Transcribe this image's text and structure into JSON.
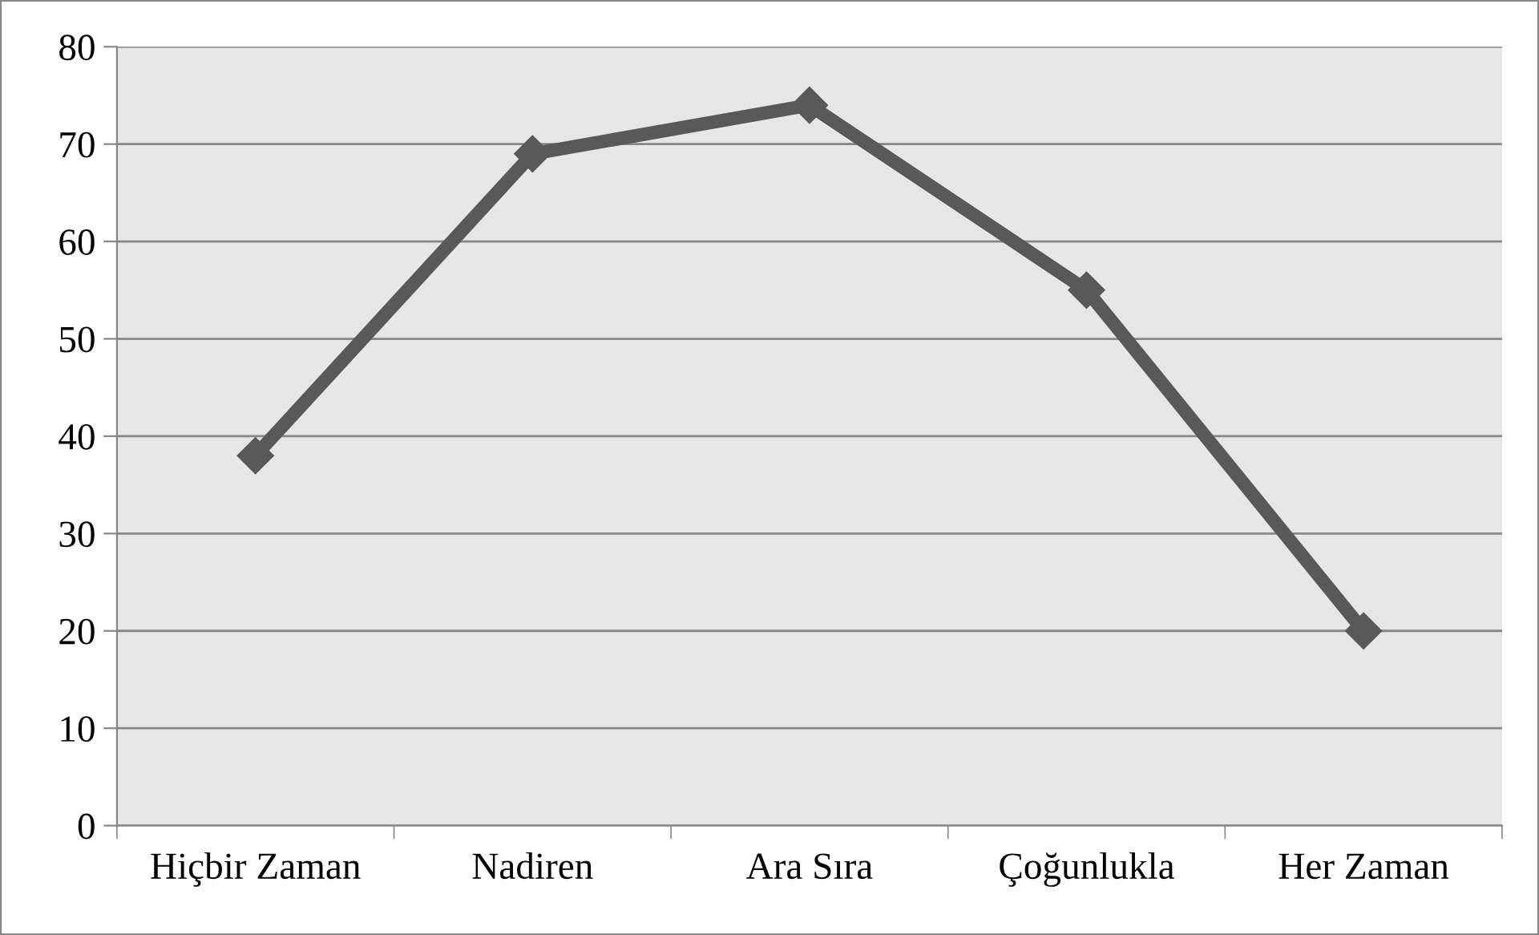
{
  "chart_data": {
    "type": "line",
    "categories": [
      "Hiçbir Zaman",
      "Nadiren",
      "Ara Sıra",
      "Çoğunlukla",
      "Her Zaman"
    ],
    "series": [
      {
        "color": "#595959",
        "values": [
          38,
          69,
          74,
          55,
          20
        ]
      }
    ],
    "ylim": [
      0,
      80
    ],
    "yticks": [
      0,
      10,
      20,
      30,
      40,
      50,
      60,
      70,
      80
    ],
    "grid": "y",
    "marker": "diamond",
    "line_style": "solid"
  }
}
